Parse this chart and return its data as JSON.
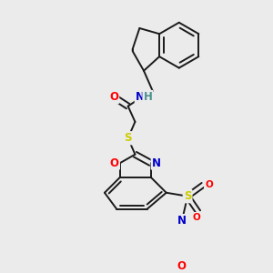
{
  "background_color": "#ebebeb",
  "bond_color": "#1a1a1a",
  "bond_width": 1.4,
  "atom_colors": {
    "O": "#ff0000",
    "N": "#0000cc",
    "S": "#cccc00",
    "H": "#4a9090",
    "C": "#1a1a1a"
  },
  "font_size": 8.5,
  "fig_width": 3.0,
  "fig_height": 3.0,
  "dpi": 100
}
